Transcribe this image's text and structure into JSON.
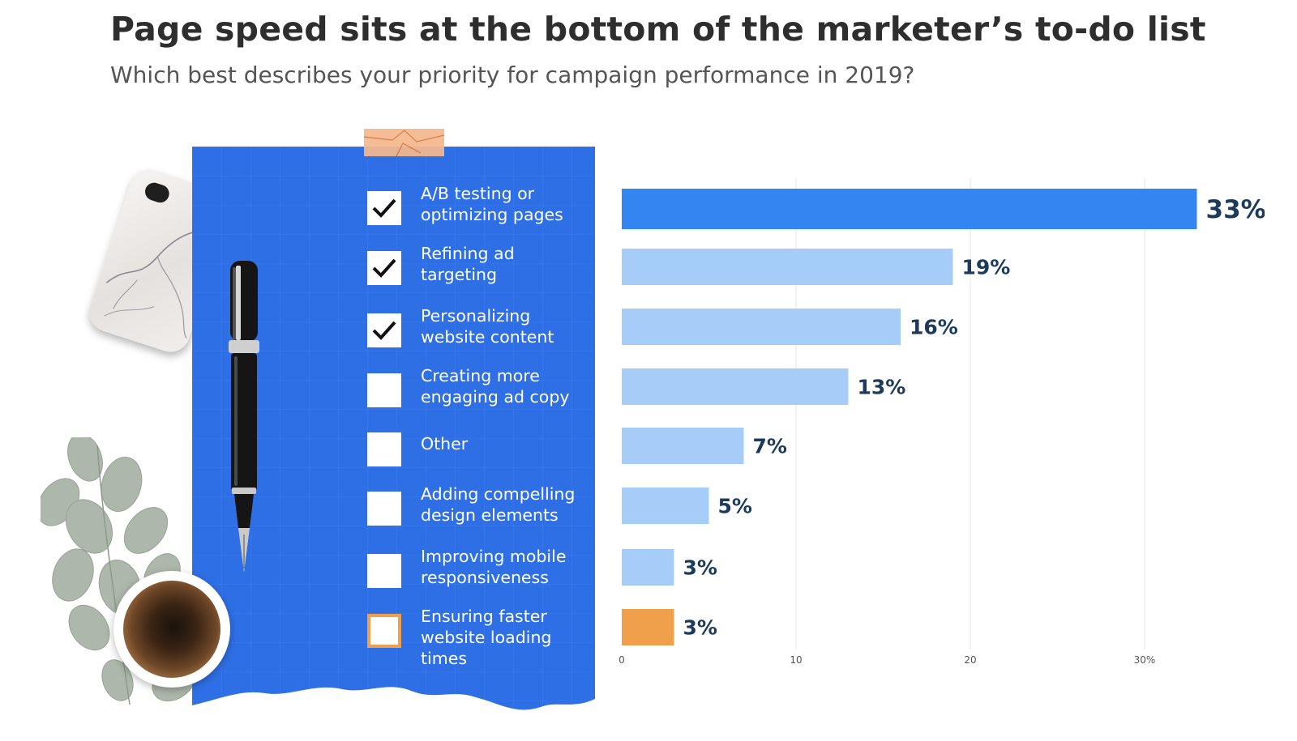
{
  "header": {
    "title": "Page speed sits at the bottom of the marketer’s to-do list",
    "subtitle": "Which best describes your priority for campaign performance in 2019?"
  },
  "checklist": [
    {
      "line1": "A/B testing or",
      "line2": "optimizing  pages",
      "checked": true,
      "highlight": false
    },
    {
      "line1": "Refining ad",
      "line2": "targeting",
      "checked": true,
      "highlight": false
    },
    {
      "line1": "Personalizing",
      "line2": "website content",
      "checked": true,
      "highlight": false
    },
    {
      "line1": "Creating more",
      "line2": "engaging ad copy",
      "checked": false,
      "highlight": false
    },
    {
      "line1": "Other",
      "line2": "",
      "checked": false,
      "highlight": false
    },
    {
      "line1": "Adding compelling",
      "line2": "design elements",
      "checked": false,
      "highlight": false
    },
    {
      "line1": "Improving mobile",
      "line2": "responsiveness",
      "checked": false,
      "highlight": false
    },
    {
      "line1": "Ensuring faster",
      "line2": "website loading times",
      "checked": false,
      "highlight": true
    }
  ],
  "chart_data": {
    "type": "bar",
    "orientation": "horizontal",
    "categories": [
      "A/B testing or optimizing  pages",
      "Refining ad targeting",
      "Personalizing website content",
      "Creating more engaging ad copy",
      "Other",
      "Adding compelling design elements",
      "Improving mobile responsiveness",
      "Ensuring faster website loading times"
    ],
    "values": [
      33,
      19,
      16,
      13,
      7,
      5,
      3,
      3
    ],
    "value_labels": [
      "33%",
      "19%",
      "16%",
      "13%",
      "7%",
      "5%",
      "3%",
      "3%"
    ],
    "xlim": [
      0,
      33
    ],
    "xticks": [
      0,
      10,
      20,
      30
    ],
    "xtick_labels": [
      "0",
      "10",
      "20",
      "30%"
    ],
    "grid": true,
    "colors": {
      "top": "#3385f2",
      "default": "#a5cdf8",
      "highlight": "#f0a04b",
      "paper": "#2f6fe6",
      "label": "#1c3a5c"
    }
  }
}
